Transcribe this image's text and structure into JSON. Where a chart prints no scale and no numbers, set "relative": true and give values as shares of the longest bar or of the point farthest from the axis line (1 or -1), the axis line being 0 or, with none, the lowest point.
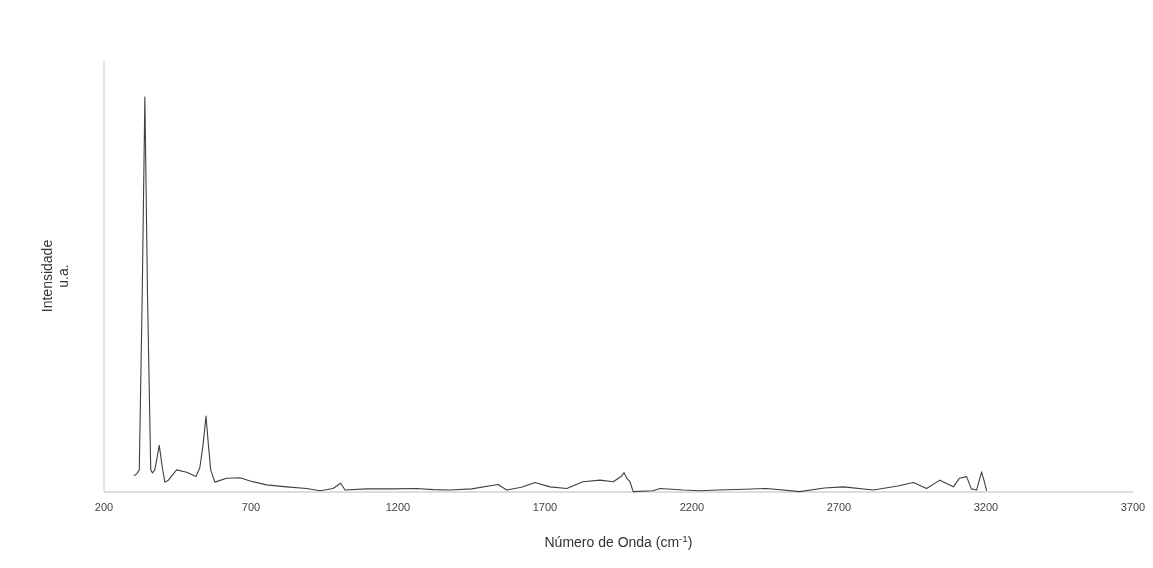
{
  "chart_data": {
    "type": "line",
    "relative": true,
    "xlabel": "Número de Onda (cm$^{-1}$)",
    "ylabel": "Intensidade\nu.a.",
    "xlim": [
      200,
      3700
    ],
    "xticks": [
      200,
      700,
      1200,
      1700,
      2200,
      2700,
      3200,
      3700
    ],
    "grid": false,
    "marker": "none",
    "line_style": "solid",
    "series": [
      {
        "color": "#404040",
        "x": [
          302,
          311,
          320,
          330,
          339,
          348,
          359,
          365,
          373,
          388,
          398,
          407,
          419,
          447,
          481,
          513,
          526,
          537,
          547,
          555,
          563,
          577,
          617,
          663,
          697,
          753,
          821,
          889,
          935,
          979,
          1005,
          1020,
          1093,
          1183,
          1263,
          1320,
          1377,
          1450,
          1540,
          1570,
          1620,
          1666,
          1717,
          1774,
          1829,
          1887,
          1932,
          1960,
          1969,
          1978,
          1989,
          2000,
          2067,
          2091,
          2170,
          2230,
          2284,
          2380,
          2454,
          2567,
          2650,
          2715,
          2817,
          2900,
          2953,
          2998,
          3043,
          3089,
          3110,
          3134,
          3150,
          3168,
          3185,
          3196,
          3202
        ],
        "values": [
          0.041,
          0.046,
          0.056,
          0.5,
          1.0,
          0.5,
          0.056,
          0.048,
          0.056,
          0.118,
          0.064,
          0.025,
          0.03,
          0.056,
          0.05,
          0.039,
          0.062,
          0.12,
          0.192,
          0.12,
          0.056,
          0.025,
          0.035,
          0.036,
          0.028,
          0.018,
          0.013,
          0.009,
          0.003,
          0.009,
          0.022,
          0.005,
          0.008,
          0.008,
          0.009,
          0.006,
          0.005,
          0.008,
          0.019,
          0.005,
          0.012,
          0.024,
          0.013,
          0.009,
          0.026,
          0.03,
          0.026,
          0.04,
          0.049,
          0.035,
          0.026,
          0.001,
          0.003,
          0.009,
          0.005,
          0.003,
          0.005,
          0.007,
          0.009,
          0.001,
          0.01,
          0.013,
          0.005,
          0.015,
          0.024,
          0.009,
          0.03,
          0.013,
          0.035,
          0.039,
          0.008,
          0.005,
          0.051,
          0.022,
          0.003
        ]
      }
    ]
  }
}
